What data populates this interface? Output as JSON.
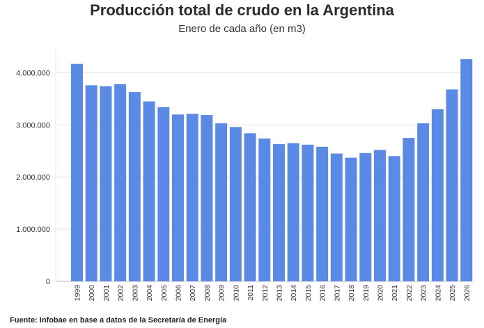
{
  "title": "Producción total de crudo en la Argentina",
  "subtitle": "Enero de cada año (en m3)",
  "source": "Fuente: Infobae en base a datos de la Secretaría de Energía",
  "colors": {
    "bar": "#5b8ae6",
    "grid": "#e6e6e6",
    "axis": "#bbbbbb"
  },
  "chart_data": {
    "type": "bar",
    "title": "Producción total de crudo en la Argentina",
    "subtitle": "Enero de cada año (en m3)",
    "xlabel": "",
    "ylabel": "",
    "ylim": [
      0,
      4500000
    ],
    "yticks": [
      0,
      1000000,
      2000000,
      3000000,
      4000000
    ],
    "ytick_labels": [
      "0",
      "1.000.000",
      "2.000.000",
      "3.000.000",
      "4.000.000"
    ],
    "grid": true,
    "categories": [
      "1999",
      "2000",
      "2001",
      "2002",
      "2003",
      "2004",
      "2005",
      "2006",
      "2007",
      "2008",
      "2009",
      "2010",
      "2011",
      "2012",
      "2013",
      "2014",
      "2015",
      "2016",
      "2017",
      "2018",
      "2019",
      "2020",
      "2021",
      "2022",
      "2023",
      "2024",
      "2025",
      "2026"
    ],
    "values": [
      4170000,
      3760000,
      3740000,
      3780000,
      3630000,
      3450000,
      3340000,
      3200000,
      3210000,
      3190000,
      3030000,
      2960000,
      2840000,
      2740000,
      2630000,
      2650000,
      2620000,
      2580000,
      2450000,
      2370000,
      2460000,
      2520000,
      2400000,
      2750000,
      3030000,
      3300000,
      3680000,
      4260000
    ]
  }
}
